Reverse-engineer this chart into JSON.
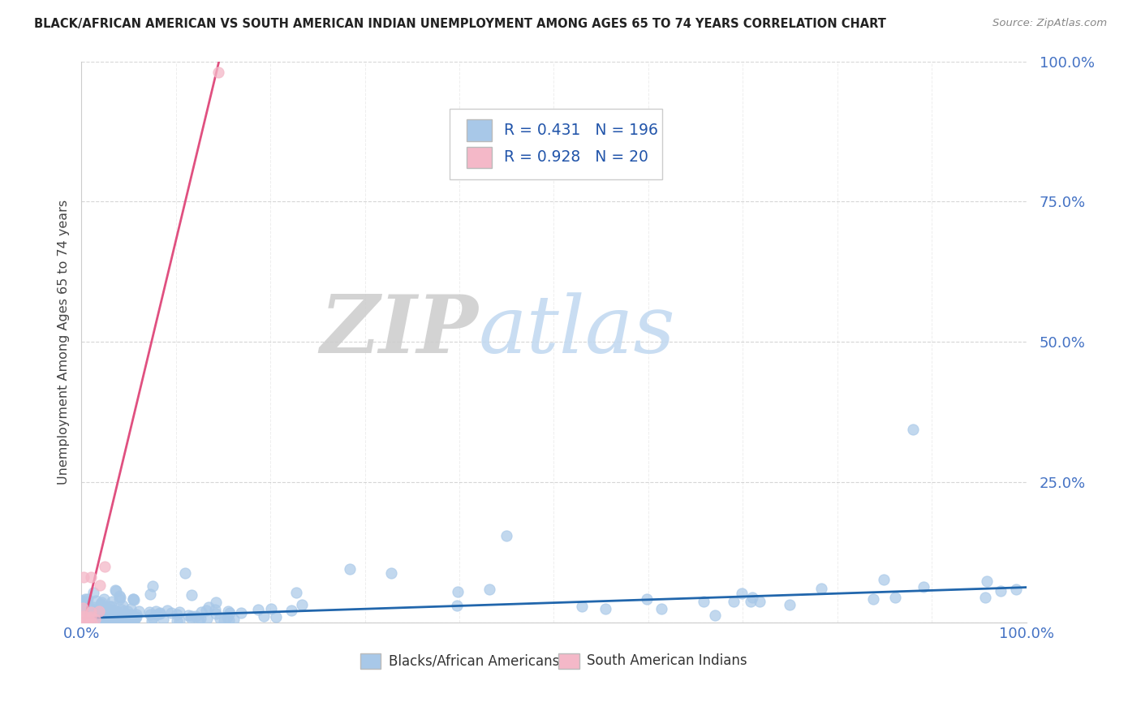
{
  "title": "BLACK/AFRICAN AMERICAN VS SOUTH AMERICAN INDIAN UNEMPLOYMENT AMONG AGES 65 TO 74 YEARS CORRELATION CHART",
  "source": "Source: ZipAtlas.com",
  "ylabel": "Unemployment Among Ages 65 to 74 years",
  "yticks": [
    0.0,
    0.25,
    0.5,
    0.75,
    1.0
  ],
  "ytick_labels": [
    "",
    "25.0%",
    "50.0%",
    "75.0%",
    "100.0%"
  ],
  "blue_R": 0.431,
  "blue_N": 196,
  "pink_R": 0.928,
  "pink_N": 20,
  "blue_color": "#a8c8e8",
  "pink_color": "#f4b8c8",
  "blue_line_color": "#2166ac",
  "pink_line_color": "#e05080",
  "watermark_zip": "ZIP",
  "watermark_atlas": "atlas",
  "background_color": "#ffffff",
  "legend_label_blue": "Blacks/African Americans",
  "legend_label_pink": "South American Indians",
  "blue_trend_slope": 0.055,
  "blue_trend_intercept": 0.008,
  "pink_trend_slope": 7.0,
  "pink_trend_intercept": -0.02,
  "ylim": [
    0,
    1.0
  ],
  "xlim": [
    0,
    1.0
  ]
}
